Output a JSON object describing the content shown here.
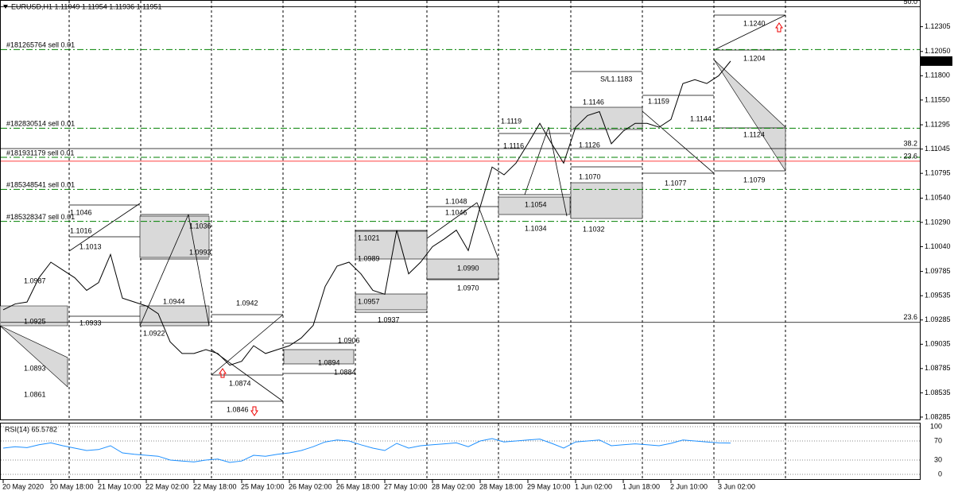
{
  "chart_data": [
    {
      "type": "line",
      "title": "EURUSD,H1  1.11949 1.11954 1.11936 1.11951",
      "categories": [
        "20 May 2020",
        null,
        null,
        null,
        "20 May 18:00",
        null,
        null,
        null,
        "21 May 10:00",
        null,
        null,
        null,
        "22 May 02:00",
        null,
        null,
        null,
        "22 May 18:00",
        null,
        null,
        null,
        "25 May 10:00",
        null,
        null,
        null,
        "26 May 02:00",
        null,
        null,
        null,
        "26 May 18:00",
        null,
        null,
        null,
        "27 May 10:00",
        null,
        null,
        null,
        "28 May 02:00",
        null,
        null,
        null,
        "28 May 18:00",
        null,
        null,
        null,
        "29 May 10:00",
        null,
        null,
        null,
        "1 Jun 02:00",
        null,
        null,
        null,
        "1 Jun 18:00",
        null,
        null,
        null,
        "2 Jun 10:00",
        null,
        null,
        null,
        "3 Jun 02:00",
        null
      ],
      "series": [
        {
          "color": "#000000",
          "values": [
            1.0939,
            1.0945,
            1.0947,
            1.0972,
            1.0988,
            1.098,
            1.0972,
            1.0959,
            1.0967,
            1.0996,
            1.0951,
            1.0947,
            1.0943,
            1.0935,
            1.0906,
            1.0894,
            1.0894,
            1.0898,
            1.0894,
            1.0882,
            1.0886,
            1.0902,
            1.0894,
            1.0898,
            1.0902,
            1.091,
            1.0923,
            1.0963,
            1.0984,
            1.0988,
            1.0976,
            1.0959,
            1.0955,
            1.1021,
            1.0976,
            1.0988,
            1.1004,
            1.1012,
            1.1021,
            1.1,
            1.1045,
            1.1086,
            1.1078,
            1.109,
            1.111,
            1.1131,
            1.111,
            1.109,
            1.1127,
            1.1139,
            1.1143,
            1.111,
            1.1123,
            1.1131,
            1.1131,
            1.1127,
            1.1135,
            1.1172,
            1.1176,
            1.1172,
            1.118,
            1.11951
          ]
        }
      ],
      "ylim": [
        1.0826,
        1.1258
      ],
      "yticks": [
        1.12305,
        {
          "value": 1.1205,
          "label": "1.12050"
        },
        {
          "value": 1.118,
          "label": "1.11800"
        },
        {
          "value": 1.1155,
          "label": "1.11550"
        },
        1.11295,
        1.11045,
        1.10795,
        {
          "value": 1.1054,
          "label": "1.10540"
        },
        {
          "value": 1.1029,
          "label": "1.10290"
        },
        {
          "value": 1.1004,
          "label": "1.10040"
        },
        1.09785,
        1.09535,
        1.09285,
        1.09035,
        1.08785,
        1.08535,
        1.08285
      ],
      "last_price": 1.11951,
      "orders": [
        {
          "label": "#181265764 sell 0.01",
          "price": 1.1207
        },
        {
          "label": "#182830514 sell 0.01",
          "price": 1.1126
        },
        {
          "label": "#181931179 sell 0.01",
          "price": 1.1096
        },
        {
          "label": "#185348541 sell 0.01",
          "price": 1.1063
        },
        {
          "label": "#185328347 sell 0.01",
          "price": 1.103
        }
      ],
      "levels": [
        {
          "label": "50.0",
          "price": 1.1251,
          "color": "#000000"
        },
        {
          "label": "38.2",
          "price": 1.1105,
          "color": "#000000"
        },
        {
          "label": "23.6",
          "price": 1.1092,
          "color": "#ff0000"
        },
        {
          "label": "23.6",
          "price": 1.0926,
          "color": "#000000"
        }
      ],
      "annotations": [
        "1.1046",
        "1.1016",
        "1.1013",
        "1.1036",
        "1.0993",
        "1.0987",
        "1.0925",
        "1.0933",
        "1.0944",
        "1.0922",
        "1.0942",
        "1.0893",
        "1.0861",
        "1.0874",
        "1.0846",
        "1.0906",
        "1.0894",
        "1.0884",
        "1.1021",
        "1.0989",
        "1.0957",
        "1.0937",
        "1.1048",
        "1.1046",
        "1.0990",
        "1.0970",
        "1.1119",
        "1.1116",
        "1.1054",
        "1.1034",
        "1.1146",
        "1.1126",
        "1.1070",
        "1.1032",
        "1.1159",
        "1.1144",
        "1.1077",
        "1.1240",
        "1.1204",
        "1.1124",
        "1.1079",
        "S/L1.1183"
      ]
    },
    {
      "type": "line",
      "title": "RSI(14) 65.5782",
      "series": [
        {
          "color": "#1e90ff",
          "values": [
            55,
            58,
            56,
            62,
            66,
            60,
            55,
            50,
            52,
            60,
            45,
            42,
            40,
            38,
            30,
            28,
            26,
            30,
            32,
            25,
            28,
            40,
            38,
            42,
            45,
            50,
            58,
            68,
            72,
            70,
            62,
            55,
            50,
            65,
            55,
            60,
            62,
            64,
            66,
            58,
            70,
            75,
            68,
            70,
            72,
            74,
            65,
            55,
            68,
            70,
            72,
            60,
            62,
            64,
            62,
            60,
            65,
            72,
            70,
            68,
            66,
            65.5782
          ]
        }
      ],
      "ylim": [
        0,
        100
      ],
      "yticks": [
        0,
        30,
        70,
        100
      ]
    }
  ]
}
